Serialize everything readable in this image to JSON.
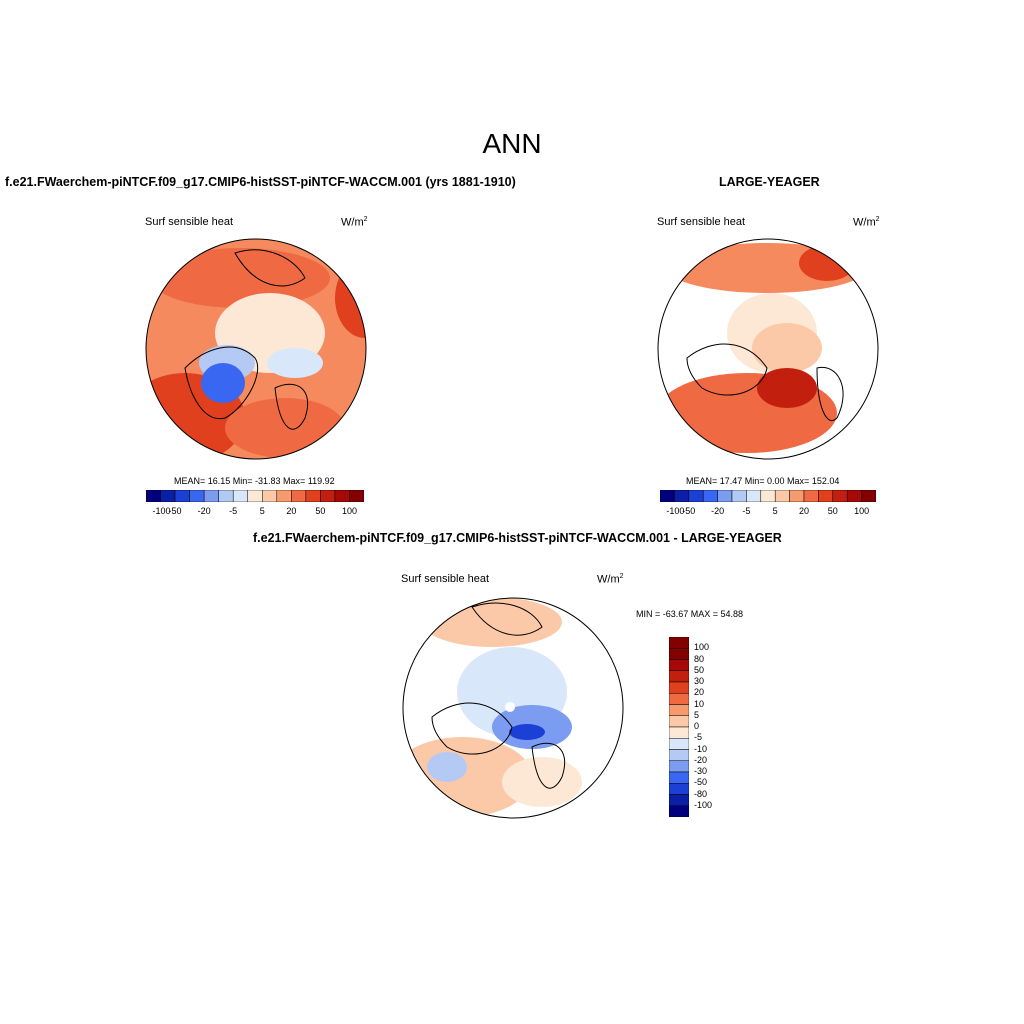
{
  "page": {
    "title": "ANN",
    "bottom_title": "f.e21.FWaerchem-piNTCF.f09_g17.CMIP6-histSST-piNTCF-WACCM.001 - LARGE-YEAGER"
  },
  "colors": {
    "palette": [
      "#00007f",
      "#0a1ea6",
      "#1c3fd6",
      "#3a67f2",
      "#7b9cf1",
      "#b4caf4",
      "#d9e7fa",
      "#fde8d6",
      "#fbc9a8",
      "#f79b6e",
      "#ef6a43",
      "#e0401e",
      "#c21f0e",
      "#a70909",
      "#820000"
    ],
    "land_outline": "#000000"
  },
  "panels": [
    {
      "title": "f.e21.FWaerchem-piNTCF.f09_g17.CMIP6-histSST-piNTCF-WACCM.001 (yrs 1881-1910)",
      "variable": "Surf sensible heat",
      "units": "W/m",
      "units_sup": "2",
      "stats_text": "MEAN=  16.15  Min= -31.83  Max= 119.92",
      "stats": {
        "mean": 16.15,
        "min": -31.83,
        "max": 119.92
      },
      "colorbar_ticks": [
        "-100",
        "-50",
        "-20",
        "-5",
        "5",
        "20",
        "50",
        "100"
      ]
    },
    {
      "title": "LARGE-YEAGER",
      "variable": "Surf sensible heat",
      "units": "W/m",
      "units_sup": "2",
      "stats_text": "MEAN=  17.47  Min=   0.00  Max= 152.04",
      "stats": {
        "mean": 17.47,
        "min": 0.0,
        "max": 152.04
      },
      "colorbar_ticks": [
        "-100",
        "-50",
        "-20",
        "-5",
        "5",
        "20",
        "50",
        "100"
      ]
    },
    {
      "title": "f.e21.FWaerchem-piNTCF.f09_g17.CMIP6-histSST-piNTCF-WACCM.001 - LARGE-YEAGER",
      "variable": "Surf sensible heat",
      "units": "W/m",
      "units_sup": "2",
      "stats_text": "MIN = -63.67 MAX =  54.88",
      "stats": {
        "min": -63.67,
        "max": 54.88
      },
      "colorbar_ticks": [
        "100",
        "80",
        "50",
        "30",
        "20",
        "10",
        "5",
        "0",
        "-5",
        "-10",
        "-20",
        "-30",
        "-50",
        "-80",
        "-100"
      ]
    }
  ]
}
